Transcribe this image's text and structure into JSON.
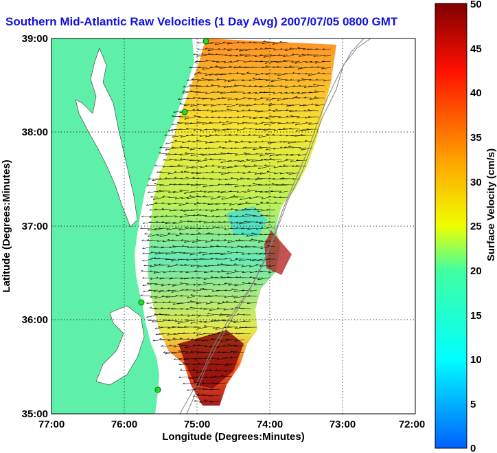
{
  "title": "Southern Mid-Atlantic Raw Velocities (1 Day Avg) 2007/07/05 0800 GMT",
  "x_axis": {
    "label": "Longitude (Degrees:Minutes)",
    "ticks": [
      "77:00",
      "76:00",
      "75:00",
      "74:00",
      "73:00",
      "72:00"
    ]
  },
  "y_axis": {
    "label": "Latitude (Degrees:Minutes)",
    "ticks": [
      "39:00",
      "38:00",
      "37:00",
      "36:00",
      "35:00"
    ]
  },
  "colorbar": {
    "label": "Surface Velocity (cm/s)",
    "ticks": [
      "50",
      "45",
      "40",
      "35",
      "30",
      "25",
      "20",
      "15",
      "10",
      "5",
      "0"
    ],
    "range": [
      0,
      50
    ]
  },
  "colors": {
    "land": "#5ef0a8",
    "water": "#ffffff",
    "title": "#1010e0",
    "station": "#22dd22"
  },
  "view": {
    "lon_range": [
      -77,
      -72
    ],
    "lat_range": [
      35,
      39
    ],
    "grid": true
  }
}
